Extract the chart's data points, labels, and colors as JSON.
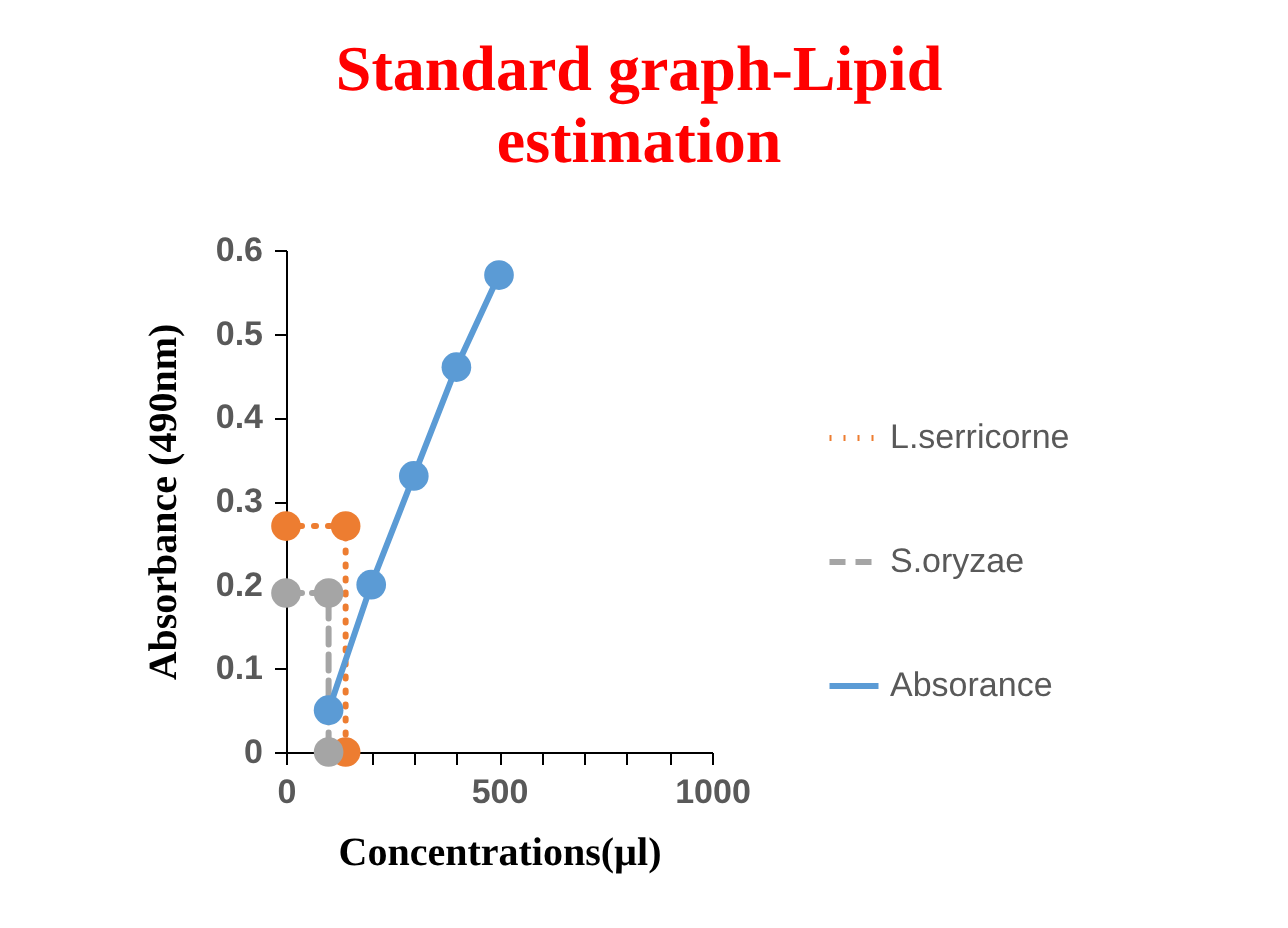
{
  "chart_data": {
    "type": "line",
    "title": "Standard graph-Lipid estimation",
    "xlabel": "Concentrations(µl)",
    "ylabel": "Absorbance (490nm)",
    "xlim": [
      0,
      1000
    ],
    "xticks": [
      0,
      {
        "value": 100,
        "label": null
      },
      {
        "value": 200,
        "label": null
      },
      {
        "value": 300,
        "label": null
      },
      {
        "value": 400,
        "label": null
      },
      500,
      {
        "value": 600,
        "label": null
      },
      {
        "value": 700,
        "label": null
      },
      {
        "value": 800,
        "label": null
      },
      {
        "value": 900,
        "label": null
      },
      1000
    ],
    "ylim": [
      0,
      0.6
    ],
    "yticks": [
      0,
      0.1,
      0.2,
      0.3,
      0.4,
      0.5,
      0.6
    ],
    "grid": false,
    "legend": "right",
    "marker": "circle",
    "series": [
      {
        "name": "L.serricorne",
        "color": "#ed7d31",
        "line_style": "dotted",
        "x": [
          0,
          140,
          140
        ],
        "values": [
          0.27,
          0.27,
          0
        ]
      },
      {
        "name": "S.oryzae",
        "color": "#a5a5a5",
        "line_style": "dashed",
        "x": [
          0,
          100,
          100
        ],
        "values": [
          0.19,
          0.19,
          0
        ]
      },
      {
        "name": "Absorance",
        "color": "#5b9bd5",
        "line_style": "solid",
        "x": [
          100,
          200,
          300,
          400,
          500
        ],
        "values": [
          0.05,
          0.2,
          0.33,
          0.46,
          0.57
        ]
      }
    ]
  }
}
